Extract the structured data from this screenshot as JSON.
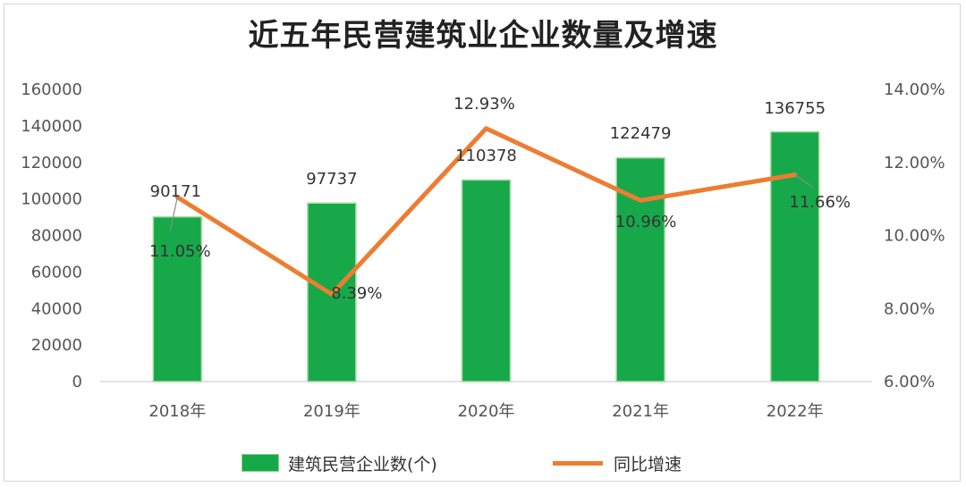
{
  "title": "近五年民营建筑业企业数量及增速",
  "colors": {
    "bar": "#17a84a",
    "bar_border": "#a9dca0",
    "line": "#ed7d31",
    "axis": "#d9d9d9",
    "leader": "#8c8c8c"
  },
  "chart_data": {
    "type": "bar",
    "categories": [
      "2018年",
      "2019年",
      "2020年",
      "2021年",
      "2022年"
    ],
    "series": [
      {
        "name": "建筑民营企业数(个)",
        "type": "bar",
        "axis": "left",
        "values": [
          90171,
          97737,
          110378,
          122479,
          136755
        ],
        "labels": [
          "90171",
          "97737",
          "110378",
          "122479",
          "136755"
        ]
      },
      {
        "name": "同比增速",
        "type": "line",
        "axis": "right",
        "values": [
          11.05,
          8.39,
          12.93,
          10.96,
          11.66
        ],
        "labels": [
          "11.05%",
          "8.39%",
          "12.93%",
          "10.96%",
          "11.66%"
        ]
      }
    ],
    "y_left": {
      "min": 0,
      "max": 160000,
      "ticks": [
        "0",
        "20000",
        "40000",
        "60000",
        "80000",
        "100000",
        "120000",
        "140000",
        "160000"
      ]
    },
    "y_right": {
      "min": 6,
      "max": 14,
      "ticks": [
        "6.00%",
        "8.00%",
        "10.00%",
        "12.00%",
        "14.00%"
      ]
    },
    "grid": false,
    "legend_position": "bottom"
  }
}
